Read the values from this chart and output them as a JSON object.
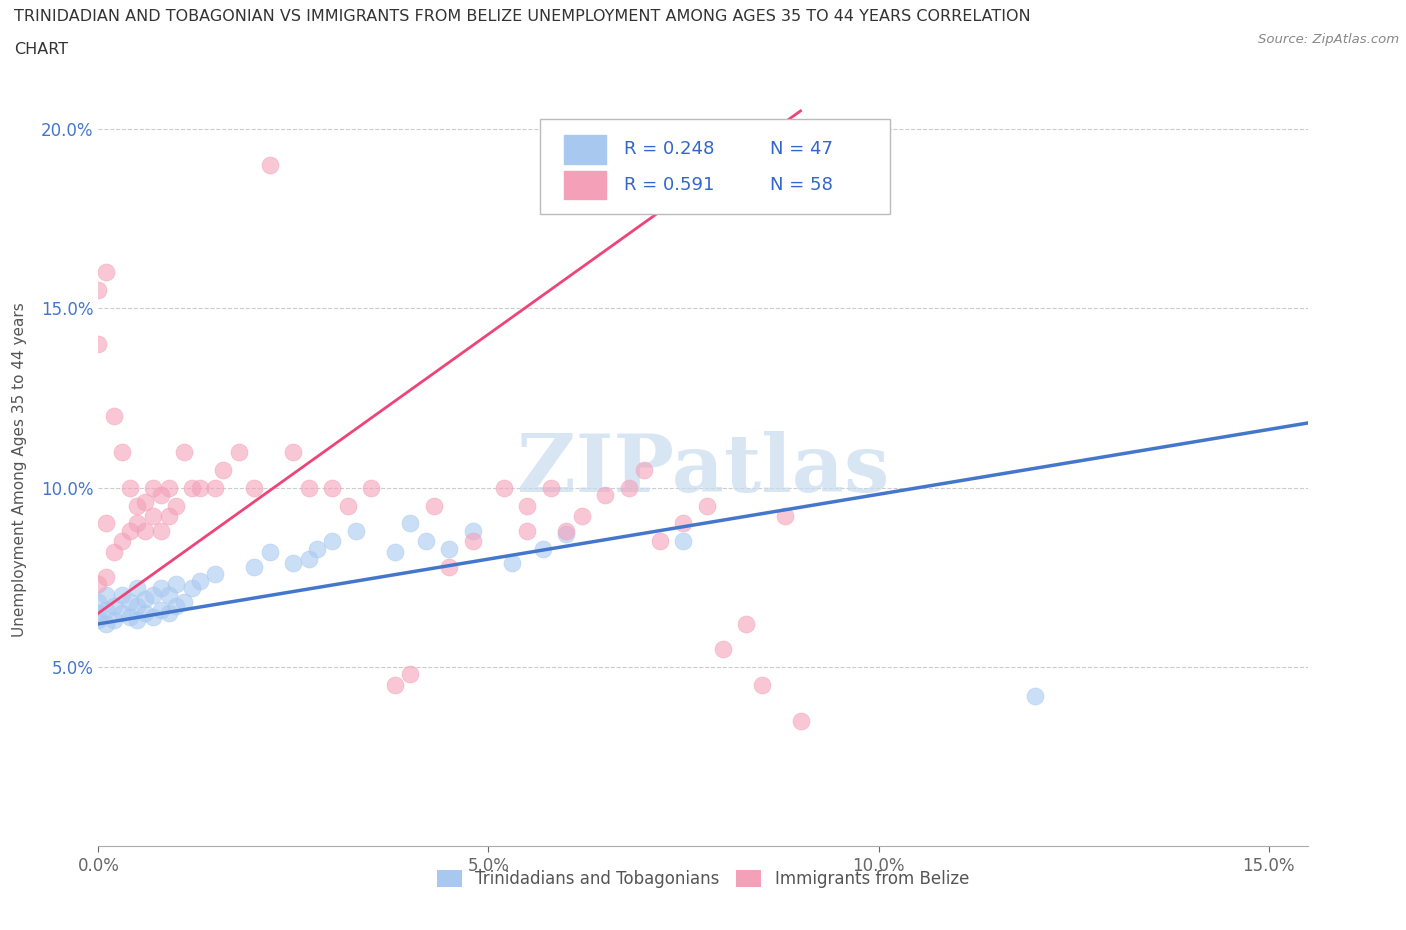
{
  "title_line1": "TRINIDADIAN AND TOBAGONIAN VS IMMIGRANTS FROM BELIZE UNEMPLOYMENT AMONG AGES 35 TO 44 YEARS CORRELATION",
  "title_line2": "CHART",
  "source_text": "Source: ZipAtlas.com",
  "ylabel": "Unemployment Among Ages 35 to 44 years",
  "xlim": [
    0.0,
    0.155
  ],
  "ylim": [
    0.0,
    0.21
  ],
  "watermark": "ZIPatlas",
  "color_blue": "#A8C8F0",
  "color_pink": "#F4A0B8",
  "line_color_blue": "#4477CC",
  "line_color_pink": "#EE4477",
  "background_color": "#FFFFFF",
  "grid_color": "#CCCCCC",
  "blue_line_x": [
    0.0,
    0.155
  ],
  "blue_line_y": [
    0.062,
    0.118
  ],
  "pink_line_x": [
    0.0,
    0.09
  ],
  "pink_line_y": [
    0.065,
    0.205
  ],
  "trin_x": [
    0.0,
    0.0,
    0.0,
    0.001,
    0.001,
    0.001,
    0.002,
    0.002,
    0.003,
    0.003,
    0.004,
    0.004,
    0.005,
    0.005,
    0.005,
    0.006,
    0.006,
    0.007,
    0.007,
    0.008,
    0.008,
    0.009,
    0.009,
    0.01,
    0.01,
    0.011,
    0.012,
    0.013,
    0.015,
    0.02,
    0.022,
    0.025,
    0.027,
    0.028,
    0.03,
    0.033,
    0.038,
    0.04,
    0.042,
    0.045,
    0.048,
    0.053,
    0.057,
    0.06,
    0.065,
    0.075,
    0.12
  ],
  "trin_y": [
    0.063,
    0.065,
    0.068,
    0.062,
    0.066,
    0.07,
    0.063,
    0.067,
    0.065,
    0.07,
    0.064,
    0.068,
    0.063,
    0.067,
    0.072,
    0.065,
    0.069,
    0.064,
    0.07,
    0.066,
    0.072,
    0.065,
    0.07,
    0.067,
    0.073,
    0.068,
    0.072,
    0.074,
    0.076,
    0.078,
    0.082,
    0.079,
    0.08,
    0.083,
    0.085,
    0.088,
    0.082,
    0.09,
    0.085,
    0.083,
    0.088,
    0.079,
    0.083,
    0.087,
    0.18,
    0.085,
    0.042
  ],
  "bel_x": [
    0.0,
    0.0,
    0.0,
    0.001,
    0.001,
    0.001,
    0.002,
    0.002,
    0.003,
    0.003,
    0.004,
    0.004,
    0.005,
    0.005,
    0.006,
    0.006,
    0.007,
    0.007,
    0.008,
    0.008,
    0.009,
    0.009,
    0.01,
    0.011,
    0.012,
    0.013,
    0.015,
    0.016,
    0.018,
    0.02,
    0.022,
    0.025,
    0.027,
    0.03,
    0.032,
    0.035,
    0.038,
    0.04,
    0.043,
    0.045,
    0.048,
    0.052,
    0.055,
    0.055,
    0.058,
    0.06,
    0.062,
    0.065,
    0.068,
    0.07,
    0.072,
    0.075,
    0.078,
    0.08,
    0.083,
    0.085,
    0.088,
    0.09
  ],
  "bel_y": [
    0.073,
    0.14,
    0.155,
    0.075,
    0.09,
    0.16,
    0.082,
    0.12,
    0.085,
    0.11,
    0.088,
    0.1,
    0.09,
    0.095,
    0.088,
    0.096,
    0.092,
    0.1,
    0.088,
    0.098,
    0.092,
    0.1,
    0.095,
    0.11,
    0.1,
    0.1,
    0.1,
    0.105,
    0.11,
    0.1,
    0.19,
    0.11,
    0.1,
    0.1,
    0.095,
    0.1,
    0.045,
    0.048,
    0.095,
    0.078,
    0.085,
    0.1,
    0.088,
    0.095,
    0.1,
    0.088,
    0.092,
    0.098,
    0.1,
    0.105,
    0.085,
    0.09,
    0.095,
    0.055,
    0.062,
    0.045,
    0.092,
    0.035
  ]
}
